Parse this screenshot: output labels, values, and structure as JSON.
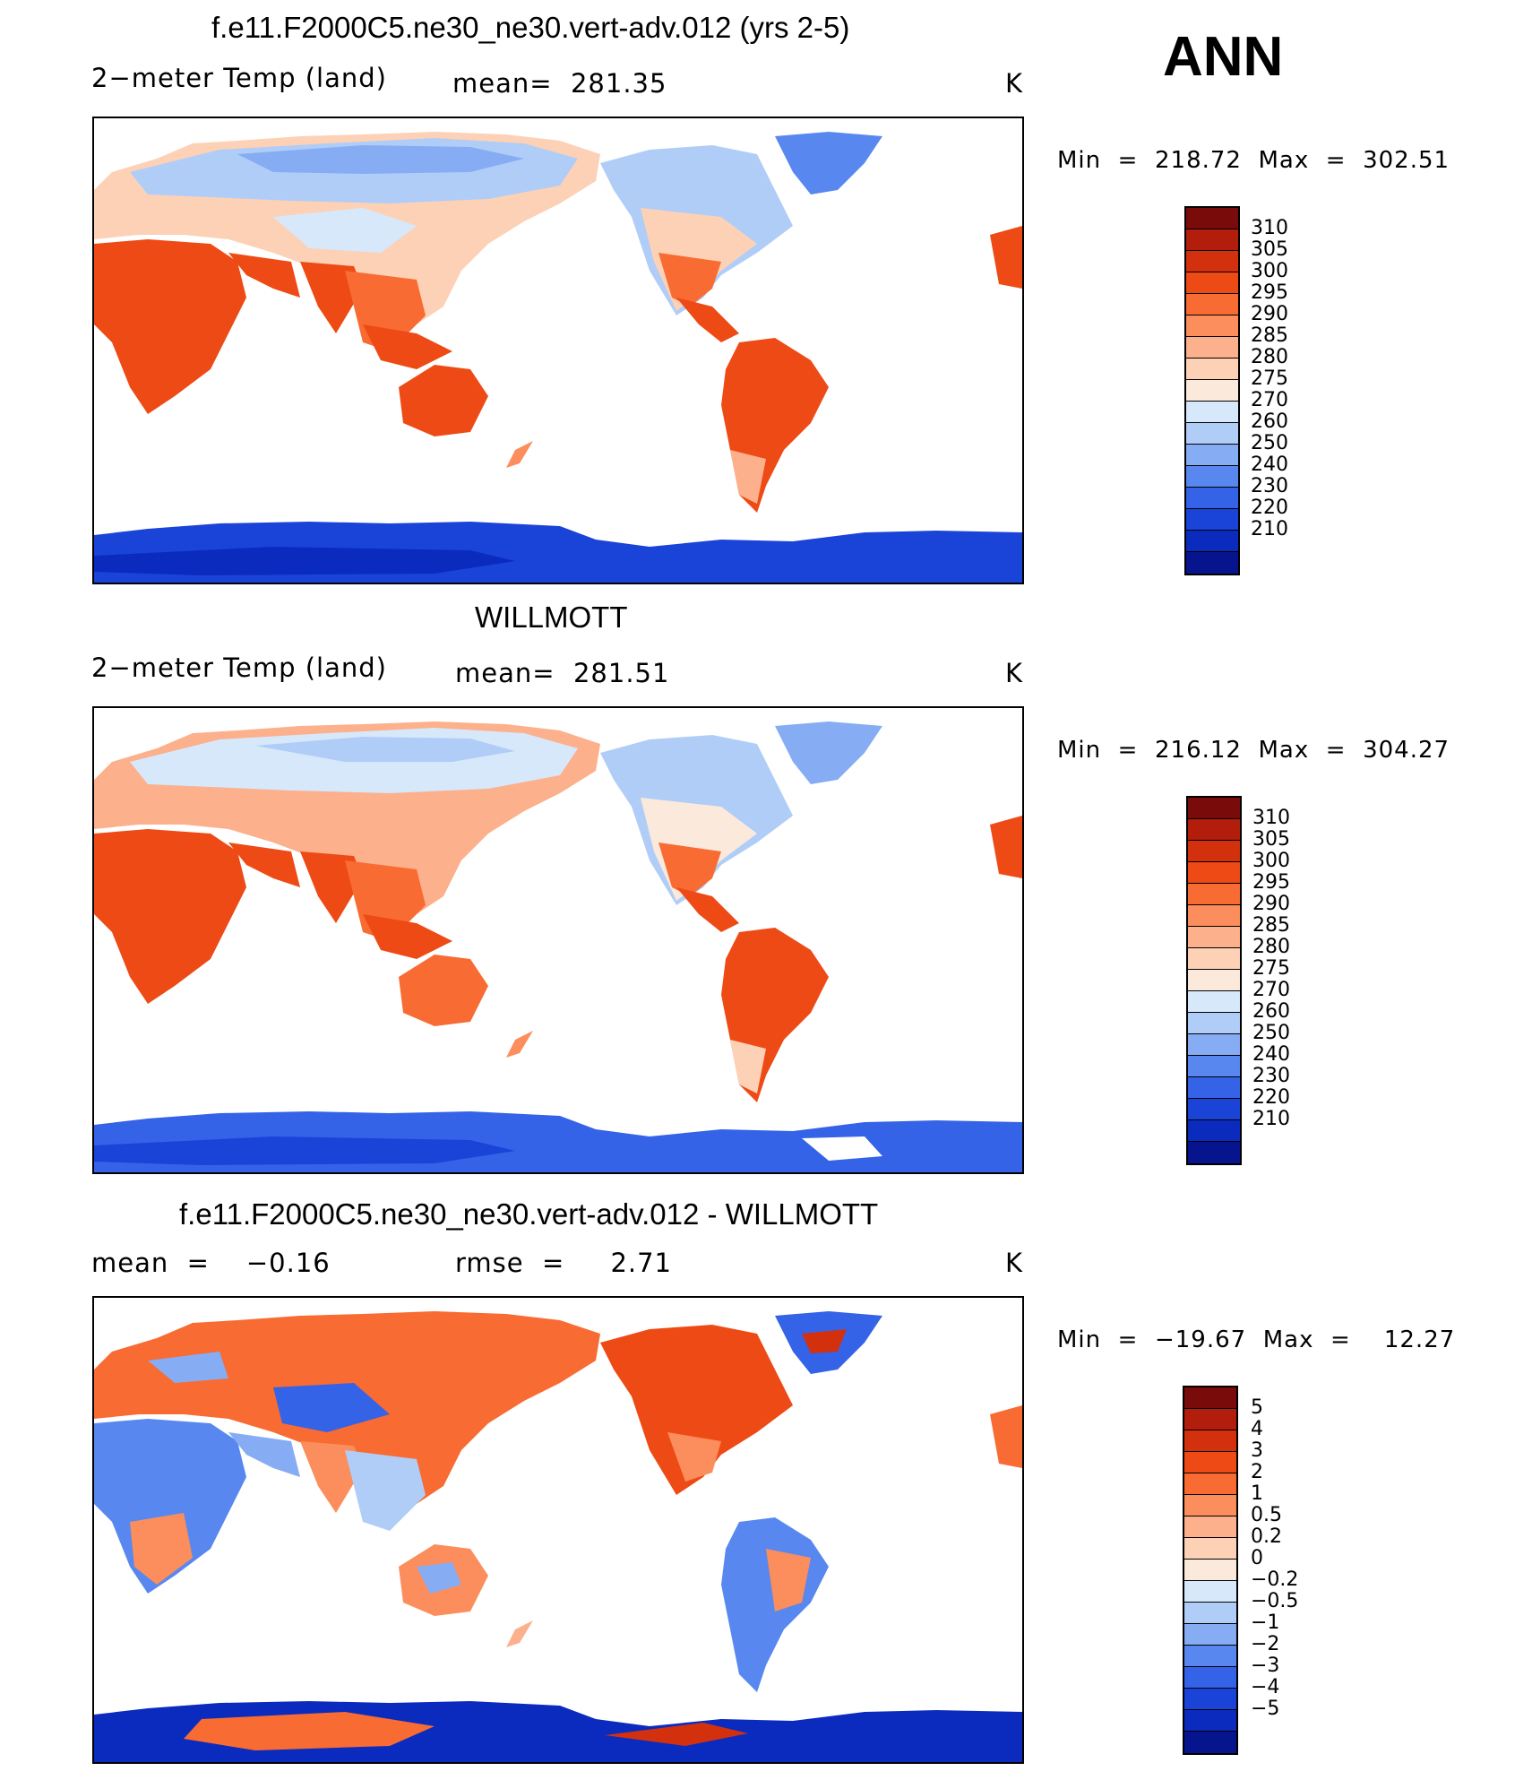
{
  "header": {
    "season": "ANN"
  },
  "panels": [
    {
      "title": "f.e11.F2000C5.ne30_ne30.vert-adv.012 (yrs 2-5)",
      "left": "2−meter Temp (land)",
      "center": "mean=  281.35",
      "units": "K",
      "minmax": "Min  =  218.72  Max  =  302.51",
      "colorbar": {
        "labels": [
          "310",
          "305",
          "300",
          "295",
          "290",
          "285",
          "280",
          "275",
          "270",
          "260",
          "250",
          "240",
          "230",
          "220",
          "210"
        ],
        "colors": [
          "#7a0b0b",
          "#b21d0c",
          "#d3300e",
          "#ee4a15",
          "#f86b32",
          "#fb8e5c",
          "#fcb08c",
          "#fdd1b6",
          "#fbe9dc",
          "#d7e8fb",
          "#b0cdf8",
          "#86acf4",
          "#5888ef",
          "#3463e8",
          "#1a43d8",
          "#0b2bbf",
          "#06158e"
        ]
      }
    },
    {
      "title": "WILLMOTT",
      "left": "2−meter Temp (land)",
      "center": "mean=  281.51",
      "units": "K",
      "minmax": "Min  =  216.12  Max  =  304.27",
      "colorbar": {
        "labels": [
          "310",
          "305",
          "300",
          "295",
          "290",
          "285",
          "280",
          "275",
          "270",
          "260",
          "250",
          "240",
          "230",
          "220",
          "210"
        ],
        "colors": [
          "#7a0b0b",
          "#b21d0c",
          "#d3300e",
          "#ee4a15",
          "#f86b32",
          "#fb8e5c",
          "#fcb08c",
          "#fdd1b6",
          "#fbe9dc",
          "#d7e8fb",
          "#b0cdf8",
          "#86acf4",
          "#5888ef",
          "#3463e8",
          "#1a43d8",
          "#0b2bbf",
          "#06158e"
        ]
      }
    },
    {
      "title": "f.e11.F2000C5.ne30_ne30.vert-adv.012 - WILLMOTT",
      "left": "mean  =    −0.16",
      "center": "rmse  =     2.71",
      "units": "K",
      "minmax": "Min  =  −19.67  Max  =    12.27",
      "colorbar": {
        "labels": [
          "5",
          "4",
          "3",
          "2",
          "1",
          "0.5",
          "0.2",
          "0",
          "−0.2",
          "−0.5",
          "−1",
          "−2",
          "−3",
          "−4",
          "−5"
        ],
        "colors": [
          "#7a0b0b",
          "#b21d0c",
          "#d3300e",
          "#ee4a15",
          "#f86b32",
          "#fb8e5c",
          "#fcb08c",
          "#fdd1b6",
          "#fbe9dc",
          "#d7e8fb",
          "#b0cdf8",
          "#86acf4",
          "#5888ef",
          "#3463e8",
          "#1a43d8",
          "#0b2bbf",
          "#06158e"
        ]
      }
    }
  ]
}
